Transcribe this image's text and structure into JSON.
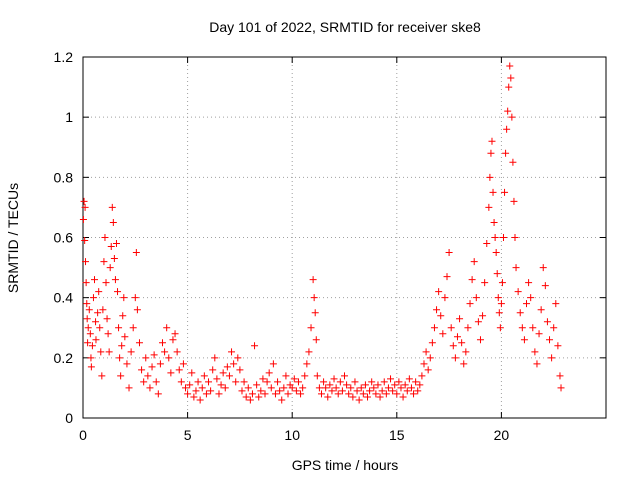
{
  "chart_data": {
    "type": "scatter",
    "title": "Day 101 of 2022, SRMTID for receiver ske8",
    "xlabel": "GPS time / hours",
    "ylabel": "SRMTID / TECUs",
    "xlim": [
      0,
      25
    ],
    "ylim": [
      0,
      1.2
    ],
    "x_ticks": [
      0,
      5,
      10,
      15,
      20
    ],
    "x_tick_labels": [
      "0",
      "5",
      "10",
      "15",
      "20"
    ],
    "y_ticks": [
      0,
      0.2,
      0.4,
      0.6,
      0.8,
      1,
      1.2
    ],
    "y_tick_labels": [
      "0",
      "0.2",
      "0.4",
      "0.6",
      "0.8",
      "1",
      "1.2"
    ],
    "grid": true,
    "marker": "plus",
    "color": "#ff0000",
    "series": [
      {
        "name": "ske8",
        "points": [
          [
            0.02,
            0.66
          ],
          [
            0.05,
            0.72
          ],
          [
            0.08,
            0.59
          ],
          [
            0.1,
            0.7
          ],
          [
            0.12,
            0.52
          ],
          [
            0.15,
            0.45
          ],
          [
            0.18,
            0.38
          ],
          [
            0.2,
            0.33
          ],
          [
            0.22,
            0.25
          ],
          [
            0.25,
            0.3
          ],
          [
            0.3,
            0.36
          ],
          [
            0.35,
            0.28
          ],
          [
            0.38,
            0.2
          ],
          [
            0.4,
            0.17
          ],
          [
            0.45,
            0.24
          ],
          [
            0.5,
            0.4
          ],
          [
            0.55,
            0.46
          ],
          [
            0.6,
            0.32
          ],
          [
            0.62,
            0.26
          ],
          [
            0.7,
            0.35
          ],
          [
            0.75,
            0.42
          ],
          [
            0.8,
            0.3
          ],
          [
            0.85,
            0.22
          ],
          [
            0.9,
            0.14
          ],
          [
            0.95,
            0.36
          ],
          [
            1.0,
            0.52
          ],
          [
            1.05,
            0.6
          ],
          [
            1.1,
            0.45
          ],
          [
            1.15,
            0.33
          ],
          [
            1.2,
            0.28
          ],
          [
            1.25,
            0.22
          ],
          [
            1.3,
            0.5
          ],
          [
            1.35,
            0.57
          ],
          [
            1.4,
            0.7
          ],
          [
            1.45,
            0.65
          ],
          [
            1.5,
            0.53
          ],
          [
            1.55,
            0.46
          ],
          [
            1.6,
            0.58
          ],
          [
            1.65,
            0.42
          ],
          [
            1.7,
            0.3
          ],
          [
            1.75,
            0.2
          ],
          [
            1.8,
            0.14
          ],
          [
            1.85,
            0.24
          ],
          [
            1.9,
            0.34
          ],
          [
            1.95,
            0.4
          ],
          [
            2.0,
            0.27
          ],
          [
            2.1,
            0.18
          ],
          [
            2.2,
            0.1
          ],
          [
            2.3,
            0.22
          ],
          [
            2.4,
            0.3
          ],
          [
            2.5,
            0.4
          ],
          [
            2.55,
            0.55
          ],
          [
            2.6,
            0.36
          ],
          [
            2.7,
            0.25
          ],
          [
            2.8,
            0.16
          ],
          [
            2.9,
            0.12
          ],
          [
            3.0,
            0.2
          ],
          [
            3.1,
            0.14
          ],
          [
            3.2,
            0.1
          ],
          [
            3.3,
            0.17
          ],
          [
            3.4,
            0.21
          ],
          [
            3.5,
            0.12
          ],
          [
            3.6,
            0.08
          ],
          [
            3.7,
            0.18
          ],
          [
            3.8,
            0.25
          ],
          [
            3.9,
            0.22
          ],
          [
            4.0,
            0.3
          ],
          [
            4.1,
            0.2
          ],
          [
            4.2,
            0.15
          ],
          [
            4.3,
            0.26
          ],
          [
            4.4,
            0.28
          ],
          [
            4.5,
            0.22
          ],
          [
            4.6,
            0.16
          ],
          [
            4.7,
            0.12
          ],
          [
            4.8,
            0.18
          ],
          [
            4.9,
            0.1
          ],
          [
            5.0,
            0.08
          ],
          [
            5.1,
            0.11
          ],
          [
            5.2,
            0.15
          ],
          [
            5.3,
            0.07
          ],
          [
            5.4,
            0.09
          ],
          [
            5.5,
            0.12
          ],
          [
            5.6,
            0.06
          ],
          [
            5.7,
            0.1
          ],
          [
            5.8,
            0.14
          ],
          [
            5.9,
            0.08
          ],
          [
            6.0,
            0.12
          ],
          [
            6.1,
            0.09
          ],
          [
            6.2,
            0.16
          ],
          [
            6.3,
            0.2
          ],
          [
            6.4,
            0.13
          ],
          [
            6.5,
            0.08
          ],
          [
            6.6,
            0.11
          ],
          [
            6.7,
            0.15
          ],
          [
            6.8,
            0.1
          ],
          [
            6.9,
            0.17
          ],
          [
            7.0,
            0.14
          ],
          [
            7.1,
            0.22
          ],
          [
            7.2,
            0.18
          ],
          [
            7.3,
            0.12
          ],
          [
            7.4,
            0.2
          ],
          [
            7.5,
            0.16
          ],
          [
            7.6,
            0.09
          ],
          [
            7.7,
            0.12
          ],
          [
            7.8,
            0.07
          ],
          [
            7.9,
            0.1
          ],
          [
            8.0,
            0.06
          ],
          [
            8.1,
            0.08
          ],
          [
            8.2,
            0.24
          ],
          [
            8.3,
            0.11
          ],
          [
            8.4,
            0.07
          ],
          [
            8.5,
            0.09
          ],
          [
            8.6,
            0.13
          ],
          [
            8.7,
            0.08
          ],
          [
            8.8,
            0.12
          ],
          [
            8.9,
            0.15
          ],
          [
            9.0,
            0.1
          ],
          [
            9.1,
            0.18
          ],
          [
            9.2,
            0.08
          ],
          [
            9.3,
            0.12
          ],
          [
            9.4,
            0.09
          ],
          [
            9.5,
            0.06
          ],
          [
            9.6,
            0.1
          ],
          [
            9.7,
            0.14
          ],
          [
            9.8,
            0.08
          ],
          [
            9.9,
            0.11
          ],
          [
            10.0,
            0.1
          ],
          [
            10.1,
            0.13
          ],
          [
            10.2,
            0.09
          ],
          [
            10.3,
            0.12
          ],
          [
            10.4,
            0.08
          ],
          [
            10.5,
            0.1
          ],
          [
            10.6,
            0.14
          ],
          [
            10.7,
            0.18
          ],
          [
            10.8,
            0.22
          ],
          [
            10.9,
            0.3
          ],
          [
            11.0,
            0.46
          ],
          [
            11.05,
            0.4
          ],
          [
            11.1,
            0.35
          ],
          [
            11.15,
            0.26
          ],
          [
            11.2,
            0.14
          ],
          [
            11.3,
            0.1
          ],
          [
            11.4,
            0.08
          ],
          [
            11.5,
            0.12
          ],
          [
            11.6,
            0.1
          ],
          [
            11.7,
            0.07
          ],
          [
            11.8,
            0.11
          ],
          [
            11.9,
            0.09
          ],
          [
            12.0,
            0.13
          ],
          [
            12.1,
            0.1
          ],
          [
            12.2,
            0.08
          ],
          [
            12.3,
            0.12
          ],
          [
            12.4,
            0.09
          ],
          [
            12.5,
            0.14
          ],
          [
            12.6,
            0.11
          ],
          [
            12.7,
            0.08
          ],
          [
            12.8,
            0.1
          ],
          [
            12.9,
            0.07
          ],
          [
            13.0,
            0.12
          ],
          [
            13.1,
            0.09
          ],
          [
            13.2,
            0.06
          ],
          [
            13.3,
            0.1
          ],
          [
            13.4,
            0.08
          ],
          [
            13.5,
            0.11
          ],
          [
            13.6,
            0.07
          ],
          [
            13.7,
            0.09
          ],
          [
            13.8,
            0.12
          ],
          [
            13.9,
            0.1
          ],
          [
            14.0,
            0.08
          ],
          [
            14.1,
            0.11
          ],
          [
            14.2,
            0.07
          ],
          [
            14.3,
            0.09
          ],
          [
            14.4,
            0.12
          ],
          [
            14.5,
            0.08
          ],
          [
            14.6,
            0.1
          ],
          [
            14.7,
            0.13
          ],
          [
            14.8,
            0.09
          ],
          [
            14.9,
            0.11
          ],
          [
            15.0,
            0.08
          ],
          [
            15.1,
            0.12
          ],
          [
            15.2,
            0.1
          ],
          [
            15.3,
            0.07
          ],
          [
            15.4,
            0.11
          ],
          [
            15.5,
            0.09
          ],
          [
            15.6,
            0.13
          ],
          [
            15.7,
            0.1
          ],
          [
            15.8,
            0.08
          ],
          [
            15.9,
            0.12
          ],
          [
            16.0,
            0.09
          ],
          [
            16.1,
            0.11
          ],
          [
            16.2,
            0.14
          ],
          [
            16.3,
            0.18
          ],
          [
            16.4,
            0.22
          ],
          [
            16.5,
            0.16
          ],
          [
            16.6,
            0.2
          ],
          [
            16.7,
            0.25
          ],
          [
            16.8,
            0.3
          ],
          [
            16.9,
            0.36
          ],
          [
            17.0,
            0.42
          ],
          [
            17.1,
            0.34
          ],
          [
            17.2,
            0.28
          ],
          [
            17.3,
            0.4
          ],
          [
            17.4,
            0.47
          ],
          [
            17.5,
            0.55
          ],
          [
            17.6,
            0.3
          ],
          [
            17.7,
            0.24
          ],
          [
            17.8,
            0.2
          ],
          [
            17.9,
            0.27
          ],
          [
            18.0,
            0.33
          ],
          [
            18.1,
            0.25
          ],
          [
            18.2,
            0.18
          ],
          [
            18.3,
            0.22
          ],
          [
            18.4,
            0.3
          ],
          [
            18.5,
            0.38
          ],
          [
            18.6,
            0.46
          ],
          [
            18.7,
            0.52
          ],
          [
            18.8,
            0.4
          ],
          [
            18.9,
            0.32
          ],
          [
            19.0,
            0.26
          ],
          [
            19.1,
            0.34
          ],
          [
            19.2,
            0.45
          ],
          [
            19.3,
            0.58
          ],
          [
            19.4,
            0.7
          ],
          [
            19.45,
            0.8
          ],
          [
            19.5,
            0.88
          ],
          [
            19.55,
            0.92
          ],
          [
            19.6,
            0.75
          ],
          [
            19.65,
            0.65
          ],
          [
            19.7,
            0.6
          ],
          [
            19.75,
            0.55
          ],
          [
            19.8,
            0.48
          ],
          [
            19.85,
            0.4
          ],
          [
            19.9,
            0.35
          ],
          [
            19.95,
            0.3
          ],
          [
            20.0,
            0.38
          ],
          [
            20.05,
            0.45
          ],
          [
            20.1,
            0.6
          ],
          [
            20.15,
            0.75
          ],
          [
            20.2,
            0.88
          ],
          [
            20.25,
            0.96
          ],
          [
            20.3,
            1.02
          ],
          [
            20.35,
            1.1
          ],
          [
            20.4,
            1.17
          ],
          [
            20.45,
            1.13
          ],
          [
            20.5,
            1.0
          ],
          [
            20.55,
            0.85
          ],
          [
            20.6,
            0.72
          ],
          [
            20.65,
            0.6
          ],
          [
            20.7,
            0.5
          ],
          [
            20.8,
            0.42
          ],
          [
            20.9,
            0.35
          ],
          [
            21.0,
            0.3
          ],
          [
            21.1,
            0.26
          ],
          [
            21.2,
            0.38
          ],
          [
            21.3,
            0.45
          ],
          [
            21.4,
            0.4
          ],
          [
            21.5,
            0.3
          ],
          [
            21.6,
            0.22
          ],
          [
            21.7,
            0.18
          ],
          [
            21.8,
            0.28
          ],
          [
            21.9,
            0.36
          ],
          [
            22.0,
            0.5
          ],
          [
            22.1,
            0.44
          ],
          [
            22.2,
            0.32
          ],
          [
            22.3,
            0.26
          ],
          [
            22.4,
            0.2
          ],
          [
            22.5,
            0.3
          ],
          [
            22.6,
            0.38
          ],
          [
            22.7,
            0.24
          ],
          [
            22.8,
            0.14
          ],
          [
            22.85,
            0.1
          ]
        ]
      }
    ]
  }
}
